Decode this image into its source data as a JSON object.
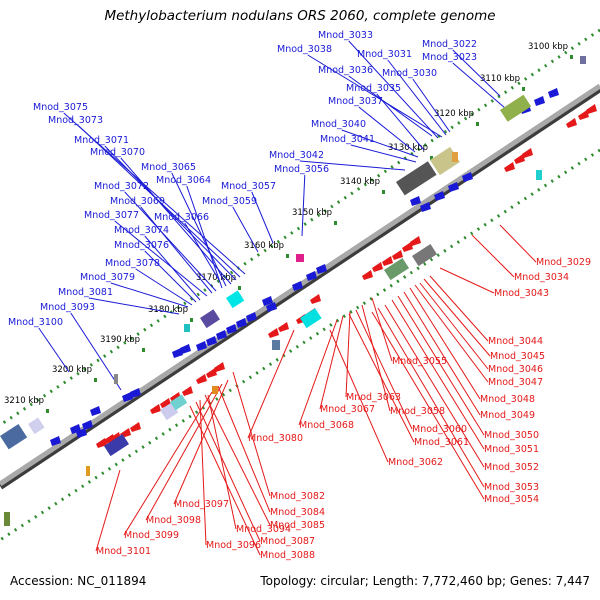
{
  "title": "Methylobacterium nodulans ORS 2060, complete genome",
  "footer": {
    "accession_label": "Accession: NC_011894",
    "topology_label": "Topology: circular; Length: 7,772,460 bp; Genes: 7,447"
  },
  "colors": {
    "forward": "#1a1ad6",
    "reverse": "#e51919",
    "dotted_track": "#2e8b2e",
    "backbone_light": "#c8c8c8",
    "backbone_dark": "#5a5a5a"
  },
  "scale_labels": [
    "3100 kbp",
    "3110 kbp",
    "3120 kbp",
    "3130 kbp",
    "3140 kbp",
    "3150 kbp",
    "3160 kbp",
    "3170 kbp",
    "3180 kbp",
    "3190 kbp",
    "3200 kbp",
    "3210 kbp"
  ],
  "genes_forward": [
    "Mnod_3033",
    "Mnod_3022",
    "Mnod_3038",
    "Mnod_3031",
    "Mnod_3023",
    "Mnod_3036",
    "Mnod_3030",
    "Mnod_3035",
    "Mnod_3037",
    "Mnod_3075",
    "Mnod_3073",
    "Mnod_3040",
    "Mnod_3071",
    "Mnod_3041",
    "Mnod_3070",
    "Mnod_3042",
    "Mnod_3065",
    "Mnod_3056",
    "Mnod_3064",
    "Mnod_3057",
    "Mnod_3072",
    "Mnod_3069",
    "Mnod_3059",
    "Mnod_3077",
    "Mnod_3066",
    "Mnod_3074",
    "Mnod_3076",
    "Mnod_3078",
    "Mnod_3079",
    "Mnod_3081",
    "Mnod_3093",
    "Mnod_3100"
  ],
  "genes_reverse": [
    "Mnod_3029",
    "Mnod_3034",
    "Mnod_3043",
    "Mnod_3044",
    "Mnod_3045",
    "Mnod_3055",
    "Mnod_3046",
    "Mnod_3047",
    "Mnod_3063",
    "Mnod_3048",
    "Mnod_3067",
    "Mnod_3058",
    "Mnod_3068",
    "Mnod_3049",
    "Mnod_3060",
    "Mnod_3050",
    "Mnod_3080",
    "Mnod_3061",
    "Mnod_3051",
    "Mnod_3062",
    "Mnod_3052",
    "Mnod_3082",
    "Mnod_3053",
    "Mnod_3054",
    "Mnod_3097",
    "Mnod_3084",
    "Mnod_3098",
    "Mnod_3094",
    "Mnod_3085",
    "Mnod_3099",
    "Mnod_3096",
    "Mnod_3087",
    "Mnod_3101",
    "Mnod_3088"
  ]
}
